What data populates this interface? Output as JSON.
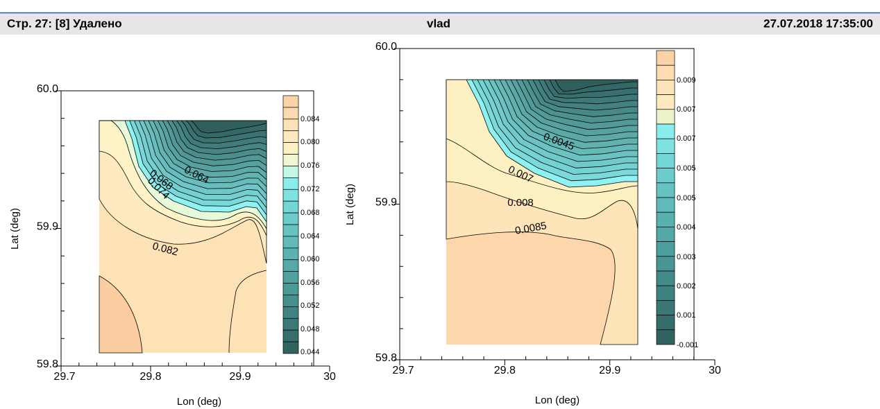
{
  "header": {
    "left": "Стр. 27: [8] Удалено",
    "author": "vlad",
    "date": "27.07.2018 17:35:00"
  },
  "figures": [
    {
      "y_label": "Lat (deg)",
      "x_label": "Lon (deg)",
      "yticks": [
        "60.0",
        "59.9",
        "59.8"
      ],
      "xticks": [
        "29.7",
        "29.8",
        "29.9",
        "30"
      ],
      "colorbar": [
        "0.084",
        "0.080",
        "0.076",
        "0.072",
        "0.068",
        "0.064",
        "0.060",
        "0.056",
        "0.052",
        "0.048",
        "0.044"
      ],
      "contour_labels": [
        "0.064",
        "0.068",
        "0.074",
        "0.082"
      ]
    },
    {
      "y_label": "Lat (deg)",
      "x_label": "Lon (deg)",
      "yticks": [
        "60.0",
        "59.9",
        "59.8"
      ],
      "xticks": [
        "29.7",
        "29.8",
        "29.9",
        "30"
      ],
      "colorbar": [
        "0.009",
        "0.007",
        "0.007",
        "0.005",
        "0.005",
        "0.004",
        "0.003",
        "0.002",
        "0.001",
        "-0.001"
      ],
      "contour_labels": [
        "0.0045",
        "0.007",
        "0.008",
        "0.0085"
      ]
    }
  ]
}
